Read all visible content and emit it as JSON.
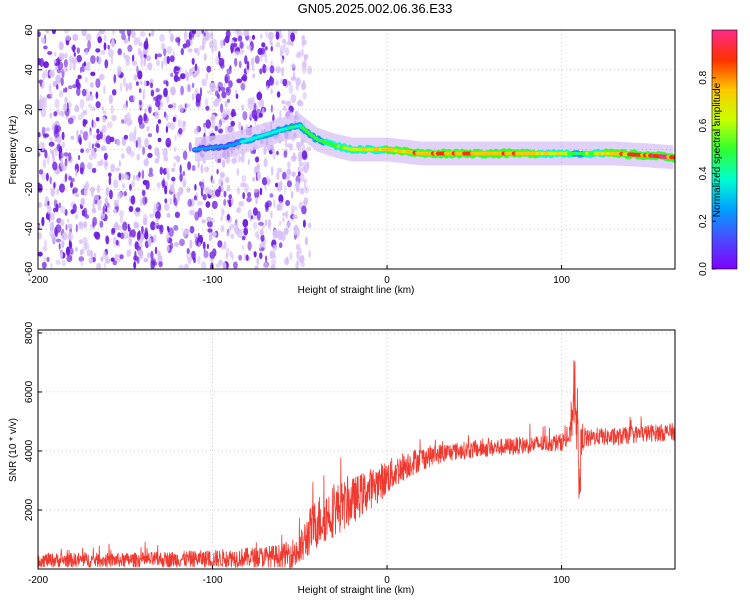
{
  "title": "GN05.2025.002.06.36.E33",
  "colors": {
    "snr_line": "#f03a30",
    "speckle_dark": "#6f1fe0",
    "speckle_light": "#d8c0f8",
    "colorbar": [
      "#7f00ff",
      "#4b4bff",
      "#00a0ff",
      "#00ffd0",
      "#30ff30",
      "#c8ff00",
      "#ffc800",
      "#ff3000",
      "#ff2a8a"
    ]
  },
  "chart_data": [
    {
      "type": "heatmap",
      "xlabel": "Height of straight line (km)",
      "ylabel": "Frequency (Hz)",
      "xlim": [
        -200,
        165
      ],
      "ylim": [
        -60,
        60
      ],
      "xticks": [
        -200,
        -100,
        0,
        100
      ],
      "yticks": [
        -60,
        -40,
        -20,
        0,
        20,
        40,
        60
      ],
      "grid": true,
      "colorbar": {
        "label": "Normalized spectral amplitude",
        "range": [
          0.0,
          1.0
        ],
        "ticks": [
          "0.0",
          "0.2",
          "0.4",
          "0.6",
          "0.8"
        ]
      },
      "noise_region_x": [
        -200,
        -50
      ],
      "signal_band": {
        "x": [
          -110,
          -90,
          -75,
          -60,
          -50,
          -40,
          -30,
          -20,
          -10,
          0,
          20,
          40,
          60,
          80,
          100,
          110,
          130,
          150,
          165
        ],
        "center_freq": [
          0,
          2,
          6,
          10,
          12,
          5,
          2,
          0,
          0,
          0,
          -2,
          -2,
          -2,
          -2,
          -2,
          -2,
          -2,
          -3,
          -4
        ],
        "amplitude": [
          0.25,
          0.3,
          0.4,
          0.45,
          0.5,
          0.55,
          0.6,
          0.7,
          0.75,
          0.8,
          0.85,
          0.9,
          0.9,
          0.85,
          0.7,
          0.5,
          0.9,
          0.95,
          1.0
        ]
      }
    },
    {
      "type": "line",
      "xlabel": "Height of straight line (km)",
      "ylabel": "SNR (10 * v/v)",
      "xlim": [
        -200,
        165
      ],
      "ylim": [
        0,
        8100
      ],
      "xticks": [
        -200,
        -100,
        0,
        100
      ],
      "yticks": [
        2000,
        4000,
        6000,
        8000
      ],
      "grid": true,
      "series": [
        {
          "x": [
            -200,
            -150,
            -100,
            -75,
            -60,
            -50,
            -45,
            -40,
            -30,
            -20,
            -10,
            0,
            10,
            20,
            30,
            40,
            50,
            60,
            70,
            80,
            90,
            100,
            105,
            108,
            110,
            112,
            115,
            120,
            130,
            140,
            150,
            165
          ],
          "y": [
            300,
            300,
            350,
            400,
            450,
            600,
            1200,
            1600,
            2000,
            2300,
            2700,
            3100,
            3500,
            3750,
            3900,
            4000,
            4050,
            4100,
            4150,
            4200,
            4250,
            4300,
            4500,
            6500,
            3000,
            4500,
            4400,
            4500,
            4450,
            4550,
            4600,
            4650
          ],
          "noise_amplitude": [
            250,
            250,
            300,
            350,
            400,
            600,
            800,
            900,
            900,
            800,
            700,
            600,
            500,
            400,
            350,
            300,
            300,
            300,
            300,
            300,
            300,
            300,
            400,
            1500,
            1500,
            500,
            300,
            300,
            300,
            300,
            300,
            300
          ]
        }
      ]
    }
  ]
}
